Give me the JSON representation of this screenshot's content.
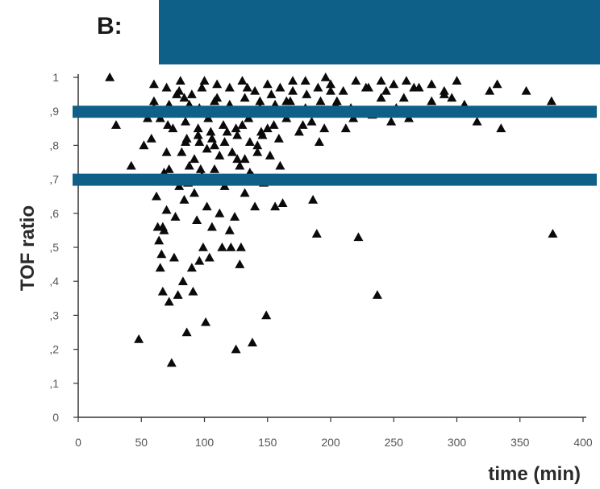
{
  "panel_label": "B: ",
  "colors": {
    "band": "#0f6088",
    "marker": "#0a0a0a",
    "axis": "#333333"
  },
  "chart_data": {
    "type": "scatter",
    "marker": "triangle",
    "xlabel": "time (min)",
    "ylabel": "TOF ratio",
    "xlim": [
      0,
      400
    ],
    "ylim": [
      0,
      1
    ],
    "xticks": [
      0,
      50,
      100,
      150,
      200,
      250,
      300,
      350,
      400
    ],
    "yticks": [
      0,
      0.1,
      0.2,
      0.3,
      0.4,
      0.5,
      0.6,
      0.7,
      0.8,
      0.9,
      1
    ],
    "xtick_labels": [
      "0",
      "50",
      "100",
      "150",
      "200",
      "250",
      "300",
      "350",
      "400"
    ],
    "ytick_labels": [
      "0",
      ",1",
      ",2",
      ",3",
      ",4",
      ",5",
      ",6",
      ",7",
      ",8",
      ",9",
      "1"
    ],
    "reference_lines_y": [
      0.9,
      0.7
    ],
    "grid": false,
    "points": [
      [
        25,
        1.0
      ],
      [
        30,
        0.86
      ],
      [
        42,
        0.74
      ],
      [
        48,
        0.23
      ],
      [
        52,
        0.8
      ],
      [
        55,
        0.88
      ],
      [
        58,
        0.82
      ],
      [
        60,
        0.91
      ],
      [
        62,
        0.65
      ],
      [
        63,
        0.56
      ],
      [
        64,
        0.52
      ],
      [
        65,
        0.44
      ],
      [
        66,
        0.48
      ],
      [
        67,
        0.37
      ],
      [
        67,
        0.56
      ],
      [
        68,
        0.55
      ],
      [
        70,
        0.61
      ],
      [
        70,
        0.78
      ],
      [
        71,
        0.86
      ],
      [
        72,
        0.34
      ],
      [
        72,
        0.73
      ],
      [
        74,
        0.16
      ],
      [
        74,
        0.9
      ],
      [
        76,
        0.47
      ],
      [
        77,
        0.59
      ],
      [
        78,
        0.95
      ],
      [
        79,
        0.36
      ],
      [
        80,
        0.68
      ],
      [
        81,
        0.99
      ],
      [
        83,
        0.4
      ],
      [
        84,
        0.64
      ],
      [
        85,
        0.81
      ],
      [
        86,
        0.25
      ],
      [
        87,
        0.69
      ],
      [
        88,
        0.92
      ],
      [
        90,
        0.44
      ],
      [
        91,
        0.37
      ],
      [
        92,
        0.66
      ],
      [
        94,
        0.58
      ],
      [
        95,
        0.85
      ],
      [
        96,
        0.46
      ],
      [
        97,
        0.73
      ],
      [
        98,
        0.97
      ],
      [
        99,
        0.5
      ],
      [
        101,
        0.28
      ],
      [
        102,
        0.62
      ],
      [
        103,
        0.88
      ],
      [
        104,
        0.47
      ],
      [
        106,
        0.56
      ],
      [
        108,
        0.8
      ],
      [
        110,
        0.94
      ],
      [
        112,
        0.6
      ],
      [
        114,
        0.5
      ],
      [
        116,
        0.68
      ],
      [
        118,
        0.84
      ],
      [
        120,
        0.55
      ],
      [
        121,
        0.5
      ],
      [
        122,
        0.9
      ],
      [
        124,
        0.59
      ],
      [
        125,
        0.2
      ],
      [
        126,
        0.76
      ],
      [
        128,
        0.45
      ],
      [
        129,
        0.5
      ],
      [
        130,
        0.86
      ],
      [
        132,
        0.66
      ],
      [
        134,
        0.97
      ],
      [
        136,
        0.72
      ],
      [
        138,
        0.22
      ],
      [
        140,
        0.62
      ],
      [
        142,
        0.8
      ],
      [
        144,
        0.93
      ],
      [
        147,
        0.69
      ],
      [
        149,
        0.3
      ],
      [
        150,
        0.85
      ],
      [
        153,
        0.95
      ],
      [
        156,
        0.62
      ],
      [
        159,
        0.82
      ],
      [
        160,
        0.74
      ],
      [
        162,
        0.63
      ],
      [
        165,
        0.93
      ],
      [
        170,
        0.99
      ],
      [
        175,
        0.9
      ],
      [
        178,
        0.86
      ],
      [
        181,
        0.95
      ],
      [
        186,
        0.64
      ],
      [
        189,
        0.54
      ],
      [
        191,
        0.81
      ],
      [
        193,
        0.9
      ],
      [
        196,
        1.0
      ],
      [
        200,
        0.96
      ],
      [
        205,
        0.93
      ],
      [
        212,
        0.85
      ],
      [
        218,
        0.88
      ],
      [
        222,
        0.53
      ],
      [
        228,
        0.97
      ],
      [
        233,
        0.89
      ],
      [
        237,
        0.36
      ],
      [
        240,
        0.94
      ],
      [
        244,
        0.96
      ],
      [
        248,
        0.87
      ],
      [
        252,
        0.91
      ],
      [
        258,
        0.94
      ],
      [
        262,
        0.88
      ],
      [
        266,
        0.97
      ],
      [
        272,
        0.9
      ],
      [
        280,
        0.93
      ],
      [
        290,
        0.95
      ],
      [
        296,
        0.94
      ],
      [
        300,
        0.99
      ],
      [
        306,
        0.92
      ],
      [
        316,
        0.87
      ],
      [
        326,
        0.96
      ],
      [
        332,
        0.98
      ],
      [
        335,
        0.85
      ],
      [
        355,
        0.96
      ],
      [
        375,
        0.93
      ],
      [
        376,
        0.54
      ],
      [
        60,
        0.98
      ],
      [
        70,
        0.97
      ],
      [
        80,
        0.96
      ],
      [
        90,
        0.95
      ],
      [
        100,
        0.99
      ],
      [
        110,
        0.98
      ],
      [
        120,
        0.97
      ],
      [
        130,
        0.99
      ],
      [
        140,
        0.96
      ],
      [
        150,
        0.98
      ],
      [
        160,
        0.97
      ],
      [
        170,
        0.96
      ],
      [
        180,
        0.99
      ],
      [
        190,
        0.97
      ],
      [
        200,
        0.98
      ],
      [
        210,
        0.96
      ],
      [
        220,
        0.99
      ],
      [
        230,
        0.97
      ],
      [
        240,
        0.99
      ],
      [
        250,
        0.98
      ],
      [
        260,
        0.99
      ],
      [
        270,
        0.97
      ],
      [
        280,
        0.98
      ],
      [
        290,
        0.96
      ],
      [
        65,
        0.88
      ],
      [
        75,
        0.85
      ],
      [
        85,
        0.87
      ],
      [
        95,
        0.83
      ],
      [
        105,
        0.84
      ],
      [
        115,
        0.86
      ],
      [
        125,
        0.85
      ],
      [
        135,
        0.88
      ],
      [
        145,
        0.84
      ],
      [
        155,
        0.86
      ],
      [
        165,
        0.88
      ],
      [
        175,
        0.84
      ],
      [
        185,
        0.87
      ],
      [
        195,
        0.85
      ],
      [
        68,
        0.72
      ],
      [
        78,
        0.7
      ],
      [
        88,
        0.74
      ],
      [
        98,
        0.71
      ],
      [
        108,
        0.73
      ],
      [
        118,
        0.7
      ],
      [
        128,
        0.74
      ],
      [
        138,
        0.71
      ],
      [
        60,
        0.93
      ],
      [
        72,
        0.92
      ],
      [
        84,
        0.94
      ],
      [
        96,
        0.91
      ],
      [
        108,
        0.93
      ],
      [
        120,
        0.92
      ],
      [
        132,
        0.94
      ],
      [
        144,
        0.91
      ],
      [
        156,
        0.92
      ],
      [
        168,
        0.93
      ],
      [
        180,
        0.91
      ],
      [
        192,
        0.93
      ],
      [
        204,
        0.92
      ],
      [
        216,
        0.91
      ],
      [
        82,
        0.78
      ],
      [
        92,
        0.76
      ],
      [
        102,
        0.79
      ],
      [
        112,
        0.77
      ],
      [
        122,
        0.78
      ],
      [
        132,
        0.76
      ],
      [
        142,
        0.78
      ],
      [
        152,
        0.77
      ],
      [
        86,
        0.82
      ],
      [
        96,
        0.81
      ],
      [
        106,
        0.82
      ],
      [
        116,
        0.81
      ],
      [
        126,
        0.83
      ],
      [
        136,
        0.81
      ],
      [
        146,
        0.83
      ]
    ]
  }
}
